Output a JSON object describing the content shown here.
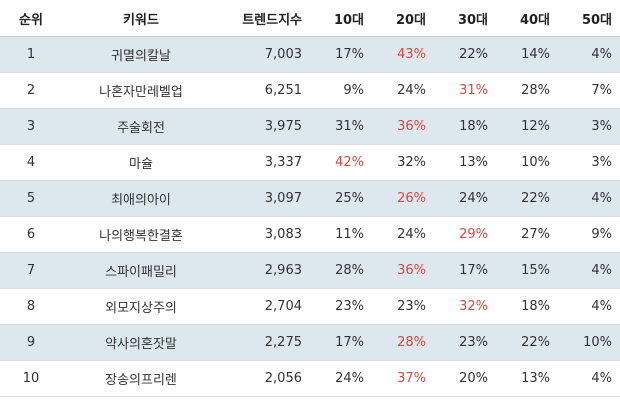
{
  "table": {
    "headers": {
      "rank": "순위",
      "keyword": "키워드",
      "trend_index": "트렌드지수",
      "age10": "10대",
      "age20": "20대",
      "age30": "30대",
      "age40": "40대",
      "age50": "50대"
    },
    "highlight_color": "#e0453b",
    "stripe_color": "#dde7ee",
    "rows": [
      {
        "rank": "1",
        "keyword": "귀멸의칼날",
        "trend_index": "7,003",
        "age10": "17%",
        "age20": "43%",
        "age30": "22%",
        "age40": "14%",
        "age50": "4%",
        "highlight": "age20"
      },
      {
        "rank": "2",
        "keyword": "나혼자만레벨업",
        "trend_index": "6,251",
        "age10": "9%",
        "age20": "24%",
        "age30": "31%",
        "age40": "28%",
        "age50": "7%",
        "highlight": "age30"
      },
      {
        "rank": "3",
        "keyword": "주술회전",
        "trend_index": "3,975",
        "age10": "31%",
        "age20": "36%",
        "age30": "18%",
        "age40": "12%",
        "age50": "3%",
        "highlight": "age20"
      },
      {
        "rank": "4",
        "keyword": "마슐",
        "trend_index": "3,337",
        "age10": "42%",
        "age20": "32%",
        "age30": "13%",
        "age40": "10%",
        "age50": "3%",
        "highlight": "age10"
      },
      {
        "rank": "5",
        "keyword": "최애의아이",
        "trend_index": "3,097",
        "age10": "25%",
        "age20": "26%",
        "age30": "24%",
        "age40": "22%",
        "age50": "4%",
        "highlight": "age20"
      },
      {
        "rank": "6",
        "keyword": "나의행복한결혼",
        "trend_index": "3,083",
        "age10": "11%",
        "age20": "24%",
        "age30": "29%",
        "age40": "27%",
        "age50": "9%",
        "highlight": "age30"
      },
      {
        "rank": "7",
        "keyword": "스파이패밀리",
        "trend_index": "2,963",
        "age10": "28%",
        "age20": "36%",
        "age30": "17%",
        "age40": "15%",
        "age50": "4%",
        "highlight": "age20"
      },
      {
        "rank": "8",
        "keyword": "외모지상주의",
        "trend_index": "2,704",
        "age10": "23%",
        "age20": "23%",
        "age30": "32%",
        "age40": "18%",
        "age50": "4%",
        "highlight": "age30"
      },
      {
        "rank": "9",
        "keyword": "약사의혼잣말",
        "trend_index": "2,275",
        "age10": "17%",
        "age20": "28%",
        "age30": "23%",
        "age40": "22%",
        "age50": "10%",
        "highlight": "age20"
      },
      {
        "rank": "10",
        "keyword": "장송의프리렌",
        "trend_index": "2,056",
        "age10": "24%",
        "age20": "37%",
        "age30": "20%",
        "age40": "13%",
        "age50": "4%",
        "highlight": "age20"
      }
    ]
  }
}
